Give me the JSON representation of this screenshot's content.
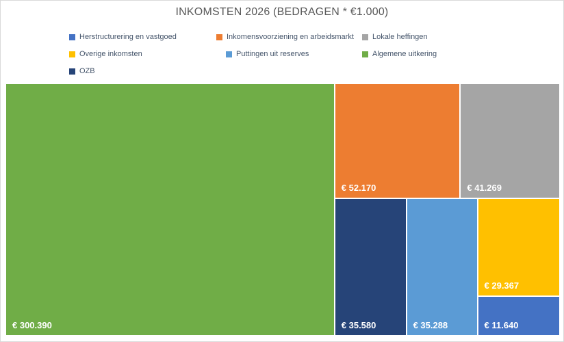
{
  "title": "INKOMSTEN 2026 (BEDRAGEN * €1.000)",
  "legend": {
    "rows": [
      {
        "items": [
          {
            "label": "Herstructurering en vastgoed",
            "color": "#4472C4"
          },
          {
            "label": "Inkomensvoorziening en arbeidsmarkt",
            "color": "#ED7D31"
          },
          {
            "label": "Lokale heffingen",
            "color": "#A5A5A5"
          }
        ]
      },
      {
        "items": [
          {
            "label": "Overige inkomsten",
            "color": "#FFC000"
          },
          {
            "label": "Puttingen uit reserves",
            "color": "#5B9BD5"
          },
          {
            "label": "Algemene uitkering",
            "color": "#70AD47"
          }
        ]
      },
      {
        "items": [
          {
            "label": "OZB",
            "color": "#264478"
          }
        ]
      }
    ]
  },
  "chart_data": {
    "type": "treemap",
    "title": "INKOMSTEN 2026 (BEDRAGEN * €1.000)",
    "unit": "€1.000",
    "legend_position": "top",
    "series": [
      {
        "name": "Algemene uitkering",
        "value": 300390,
        "label": "€ 300.390",
        "color": "#70AD47"
      },
      {
        "name": "Inkomensvoorziening en arbeidsmarkt",
        "value": 52170,
        "label": "€ 52.170",
        "color": "#ED7D31"
      },
      {
        "name": "Lokale heffingen",
        "value": 41269,
        "label": "€ 41.269",
        "color": "#A5A5A5"
      },
      {
        "name": "OZB",
        "value": 35580,
        "label": "€ 35.580",
        "color": "#264478"
      },
      {
        "name": "Puttingen uit reserves",
        "value": 35288,
        "label": "€ 35.288",
        "color": "#5B9BD5"
      },
      {
        "name": "Overige inkomsten",
        "value": 29367,
        "label": "€ 29.367",
        "color": "#FFC000"
      },
      {
        "name": "Herstructurering en vastgoed",
        "value": 11640,
        "label": "€ 11.640",
        "color": "#4472C4"
      }
    ]
  }
}
